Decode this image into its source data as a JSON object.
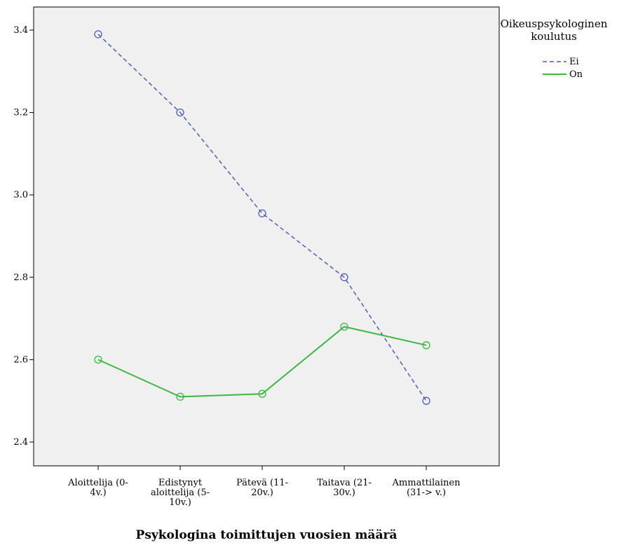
{
  "chart_data": {
    "type": "line",
    "title": "",
    "xlabel": "Psykologina toimittujen vuosien määrä",
    "ylabel": "",
    "ylim": [
      2.35,
      3.45
    ],
    "yticks": [
      2.4,
      2.6,
      2.8,
      3.0,
      3.2,
      3.4
    ],
    "ytick_labels": [
      "2.4",
      "2.6",
      "2.8",
      "3.0",
      "3.2",
      "3.4"
    ],
    "grid": false,
    "categories": [
      [
        "Aloittelija (0-",
        "4v.)"
      ],
      [
        "Edistynyt",
        "aloittelija (5-",
        "10v.)"
      ],
      [
        "Pätevä (11-",
        "20v.)"
      ],
      [
        "Taitava (21-",
        "30v.)"
      ],
      [
        "Ammattilainen",
        "(31-> v.)"
      ]
    ],
    "legend": {
      "title": [
        "Oikeuspsykologinen",
        "koulutus"
      ],
      "placement": "right"
    },
    "series": [
      {
        "name": "Ei",
        "color": "#4f5fb8",
        "dashed": true,
        "values": [
          3.39,
          3.2,
          2.955,
          2.8,
          2.5
        ]
      },
      {
        "name": "On",
        "color": "#3cb843",
        "dashed": false,
        "values": [
          2.6,
          2.51,
          2.517,
          2.68,
          2.635
        ]
      }
    ],
    "plot_background": "#f0f0f0"
  }
}
